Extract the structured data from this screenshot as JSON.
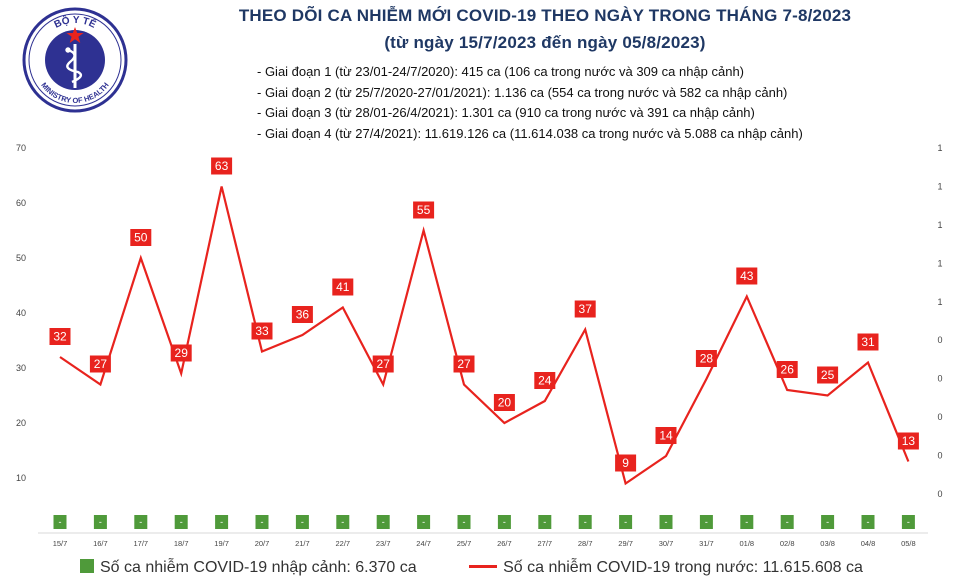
{
  "logo": {
    "top_text": "BỘ Y TẾ",
    "bottom_text": "MINISTRY OF HEALTH",
    "icon": "caduceus-icon"
  },
  "header": {
    "title": "THEO DÕI CA NHIỄM MỚI COVID-19 THEO NGÀY TRONG THÁNG 7-8/2023",
    "subtitle": "(từ ngày 15/7/2023 đến ngày 05/8/2023)"
  },
  "phases": [
    "- Giai đoạn 1 (từ 23/01-24/7/2020): 415 ca (106 ca trong nước và 309 ca nhập cảnh)",
    "- Giai đoạn 2 (từ 25/7/2020-27/01/2021): 1.136 ca (554 ca trong nước và 582 ca nhập cảnh)",
    "- Giai đoạn 3 (từ 28/01-26/4/2021): 1.301 ca (910 ca trong nước và 391 ca nhập cảnh)",
    "- Giai đoạn 4 (từ 27/4/2021): 11.619.126 ca (11.614.038 ca trong nước và 5.088 ca nhập cảnh)"
  ],
  "legend": {
    "import_label": "Số ca nhiễm COVID-19 nhập cảnh: 6.370 ca",
    "domestic_label": "Số ca nhiễm COVID-19 trong nước: 11.615.608 ca"
  },
  "colors": {
    "line": "#e8231e",
    "bar": "#4f9a3a",
    "title": "#1f3864"
  },
  "chart_data": {
    "type": "line",
    "categories": [
      "15/7",
      "16/7",
      "17/7",
      "18/7",
      "19/7",
      "20/7",
      "21/7",
      "22/7",
      "23/7",
      "24/7",
      "25/7",
      "26/7",
      "27/7",
      "28/7",
      "29/7",
      "30/7",
      "31/7",
      "01/8",
      "02/8",
      "03/8",
      "04/8",
      "05/8"
    ],
    "series": [
      {
        "name": "Số ca nhiễm COVID-19 trong nước: 11.615.608 ca",
        "kind": "line",
        "values": [
          32,
          27,
          50,
          29,
          63,
          33,
          36,
          41,
          27,
          55,
          27,
          20,
          24,
          37,
          9,
          14,
          28,
          43,
          26,
          25,
          31,
          13
        ]
      },
      {
        "name": "Số ca nhiễm COVID-19 nhập cảnh: 6.370 ca",
        "kind": "bar",
        "values": [
          0,
          0,
          0,
          0,
          0,
          0,
          0,
          0,
          0,
          0,
          0,
          0,
          0,
          0,
          0,
          0,
          0,
          0,
          0,
          0,
          0,
          0
        ],
        "labels": [
          "-",
          "-",
          "-",
          "-",
          "-",
          "-",
          "-",
          "-",
          "-",
          "-",
          "-",
          "-",
          "-",
          "-",
          "-",
          "-",
          "-",
          "-",
          "-",
          "-",
          "-",
          "-"
        ]
      }
    ],
    "ylim": [
      0,
      70
    ],
    "yticks": [
      10,
      20,
      30,
      40,
      50,
      60,
      70
    ],
    "y2ticks": [
      "0",
      "0",
      "0",
      "0",
      "0",
      "1",
      "1",
      "1",
      "1",
      "1"
    ],
    "grid": false,
    "legend_position": "bottom"
  }
}
